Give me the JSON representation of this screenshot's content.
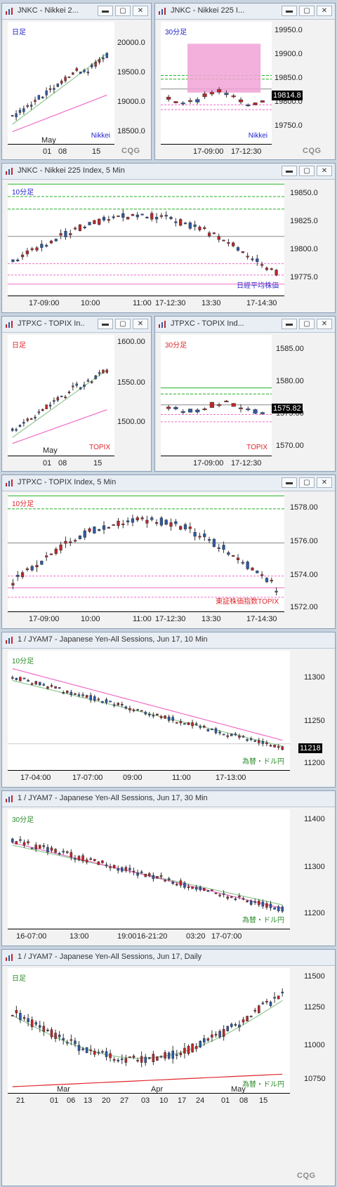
{
  "colors": {
    "up": "#2e5aa8",
    "down": "#c0262b",
    "ma_short": "#8fc78f",
    "ma_long": "#f06cc8",
    "accent_red": "#e0252a",
    "green_line": "#20b020",
    "pink_zone": "#f2a2d6",
    "label_blue": "#2222cc",
    "label_green": "#2a8a2a",
    "label_red": "#e0252a"
  },
  "windows": [
    {
      "id": "w1",
      "title": "JNKC - Nikkei 2...",
      "period": "日足",
      "symbol_label": "Nikkei",
      "yticks": [
        "20000.0",
        "19500.0",
        "19000.0",
        "18500.0"
      ],
      "xticks": [
        "May",
        "01",
        "08",
        "15"
      ],
      "cqg": "CQG"
    },
    {
      "id": "w2",
      "title": "JNKC - Nikkei 225 I...",
      "period": "30分足",
      "symbol_label": "Nikkei",
      "yticks": [
        "19950.0",
        "19900.0",
        "19850.0",
        "19800.0",
        "19750.0"
      ],
      "price": "19814.8",
      "xticks": [
        "17-09:00",
        "17-12:30"
      ],
      "cqg": "CQG"
    },
    {
      "id": "w3",
      "title": "JNKC - Nikkei 225 Index, 5 Min",
      "period": "10分足",
      "symbol_label": "日経平均株価",
      "yticks": [
        "19850.0",
        "19825.0",
        "19800.0",
        "19775.0"
      ],
      "xticks": [
        "17-09:00",
        "10:00",
        "11:00",
        "17-12:30",
        "13:30",
        "17-14:30"
      ]
    },
    {
      "id": "w4",
      "title": "JTPXC - TOPIX In...",
      "period": "日足",
      "symbol_label": "TOPIX",
      "yticks": [
        "1600.00",
        "1550.00",
        "1500.00"
      ],
      "xticks": [
        "May",
        "01",
        "08",
        "15"
      ]
    },
    {
      "id": "w5",
      "title": "JTPXC - TOPIX Ind...",
      "period": "30分足",
      "symbol_label": "TOPIX",
      "yticks": [
        "1585.00",
        "1580.00",
        "1575.00",
        "1570.00"
      ],
      "price": "1575.82",
      "xticks": [
        "17-09:00",
        "17-12:30"
      ]
    },
    {
      "id": "w6",
      "title": "JTPXC - TOPIX Index, 5 Min",
      "period": "10分足",
      "symbol_label": "東証株価指数TOPIX",
      "yticks": [
        "1578.00",
        "1576.00",
        "1574.00",
        "1572.00"
      ],
      "xticks": [
        "17-09:00",
        "10:00",
        "11:00",
        "17-12:30",
        "13:30",
        "17-14:30"
      ]
    },
    {
      "id": "w7",
      "title": "1 / JYAM7 - Japanese Yen-All Sessions, Jun 17, 10 Min",
      "period": "10分足",
      "symbol_label": "為替・ドル円",
      "yticks": [
        "11300",
        "11250",
        "11200"
      ],
      "price": "11218",
      "xticks": [
        "17-04:00",
        "17-07:00",
        "09:00",
        "11:00",
        "17-13:00"
      ]
    },
    {
      "id": "w8",
      "title": "1 / JYAM7 - Japanese Yen-All Sessions, Jun 17, 30 Min",
      "period": "30分足",
      "symbol_label": "為替・ドル円",
      "yticks": [
        "11400",
        "11300",
        "11200"
      ],
      "xticks": [
        "16-07:00",
        "13:00",
        "19:00",
        "16-21:20",
        "03:20",
        "17-07:00"
      ]
    },
    {
      "id": "w9",
      "title": "1 / JYAM7 - Japanese Yen-All Sessions, Jun 17, Daily",
      "period": "日足",
      "symbol_label": "為替・ドル円",
      "yticks": [
        "11500",
        "11250",
        "11000",
        "10750"
      ],
      "xticks": [
        "21",
        "01",
        "06",
        "13",
        "20",
        "27",
        "03",
        "10",
        "17",
        "24",
        "01",
        "08",
        "15"
      ],
      "months": [
        "Mar",
        "Apr",
        "May"
      ],
      "cqg": "CQG"
    }
  ]
}
